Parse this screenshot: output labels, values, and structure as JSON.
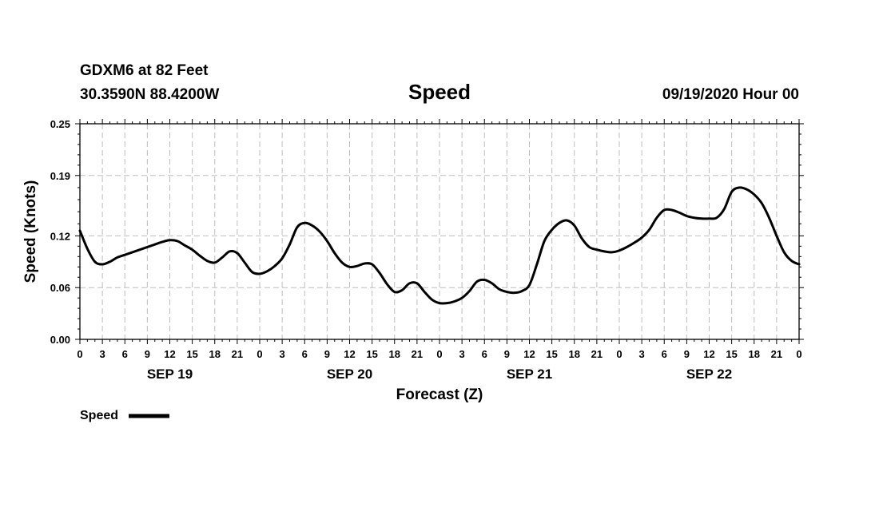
{
  "header": {
    "station": "GDXM6 at 82 Feet",
    "location": "30.3590N 88.4200W",
    "run": "09/19/2020 Hour 00"
  },
  "chart_data": {
    "type": "line",
    "title": "Speed",
    "xlabel": "Forecast (Z)",
    "ylabel": "Speed (Knots)",
    "ylim": [
      0,
      0.25
    ],
    "yticks": [
      0.0,
      0.06,
      0.12,
      0.19,
      0.25
    ],
    "ytick_labels": [
      "0.00",
      "0.06",
      "0.12",
      "0.19",
      "0.25"
    ],
    "xlim": [
      0,
      96
    ],
    "x_tick_hours": [
      0,
      3,
      6,
      9,
      12,
      15,
      18,
      21,
      24,
      27,
      30,
      33,
      36,
      39,
      42,
      45,
      48,
      51,
      54,
      57,
      60,
      63,
      66,
      69,
      72,
      75,
      78,
      81,
      84,
      87,
      90,
      93,
      96
    ],
    "x_tick_labels": [
      "0",
      "3",
      "6",
      "9",
      "12",
      "15",
      "18",
      "21",
      "0",
      "3",
      "6",
      "9",
      "12",
      "15",
      "18",
      "21",
      "0",
      "3",
      "6",
      "9",
      "12",
      "15",
      "18",
      "21",
      "0",
      "3",
      "6",
      "9",
      "12",
      "15",
      "18",
      "21",
      "0"
    ],
    "date_labels": [
      {
        "text": "SEP 19",
        "hour": 12
      },
      {
        "text": "SEP 20",
        "hour": 36
      },
      {
        "text": "SEP 21",
        "hour": 60
      },
      {
        "text": "SEP 22",
        "hour": 84
      }
    ],
    "grid": true,
    "legend": {
      "position": "bottom-left",
      "entries": [
        "Speed"
      ]
    },
    "series": [
      {
        "name": "Speed",
        "color": "#000000",
        "x": [
          0,
          1,
          2,
          3,
          4,
          5,
          6,
          7,
          8,
          9,
          10,
          11,
          12,
          13,
          14,
          15,
          16,
          17,
          18,
          19,
          20,
          21,
          22,
          23,
          24,
          25,
          26,
          27,
          28,
          29,
          30,
          31,
          32,
          33,
          34,
          35,
          36,
          37,
          38,
          39,
          40,
          41,
          42,
          43,
          44,
          45,
          46,
          47,
          48,
          49,
          50,
          51,
          52,
          53,
          54,
          55,
          56,
          57,
          58,
          59,
          60,
          61,
          62,
          63,
          64,
          65,
          66,
          67,
          68,
          69,
          70,
          71,
          72,
          73,
          74,
          75,
          76,
          77,
          78,
          79,
          80,
          81,
          82,
          83,
          84,
          85,
          86,
          87,
          88,
          89,
          90,
          91,
          92,
          93,
          94,
          95,
          96
        ],
        "values": [
          0.126,
          0.105,
          0.09,
          0.087,
          0.09,
          0.095,
          0.098,
          0.101,
          0.104,
          0.107,
          0.11,
          0.113,
          0.115,
          0.114,
          0.109,
          0.104,
          0.097,
          0.091,
          0.089,
          0.095,
          0.102,
          0.1,
          0.089,
          0.078,
          0.076,
          0.079,
          0.085,
          0.094,
          0.11,
          0.13,
          0.135,
          0.132,
          0.125,
          0.114,
          0.1,
          0.089,
          0.084,
          0.085,
          0.088,
          0.087,
          0.077,
          0.064,
          0.055,
          0.057,
          0.065,
          0.065,
          0.055,
          0.046,
          0.042,
          0.042,
          0.044,
          0.048,
          0.056,
          0.067,
          0.069,
          0.065,
          0.058,
          0.055,
          0.054,
          0.056,
          0.063,
          0.087,
          0.114,
          0.127,
          0.135,
          0.138,
          0.132,
          0.117,
          0.107,
          0.104,
          0.102,
          0.101,
          0.103,
          0.107,
          0.112,
          0.118,
          0.127,
          0.141,
          0.15,
          0.15,
          0.147,
          0.143,
          0.141,
          0.14,
          0.14,
          0.141,
          0.151,
          0.171,
          0.176,
          0.174,
          0.168,
          0.158,
          0.141,
          0.12,
          0.101,
          0.091,
          0.087
        ]
      }
    ]
  }
}
